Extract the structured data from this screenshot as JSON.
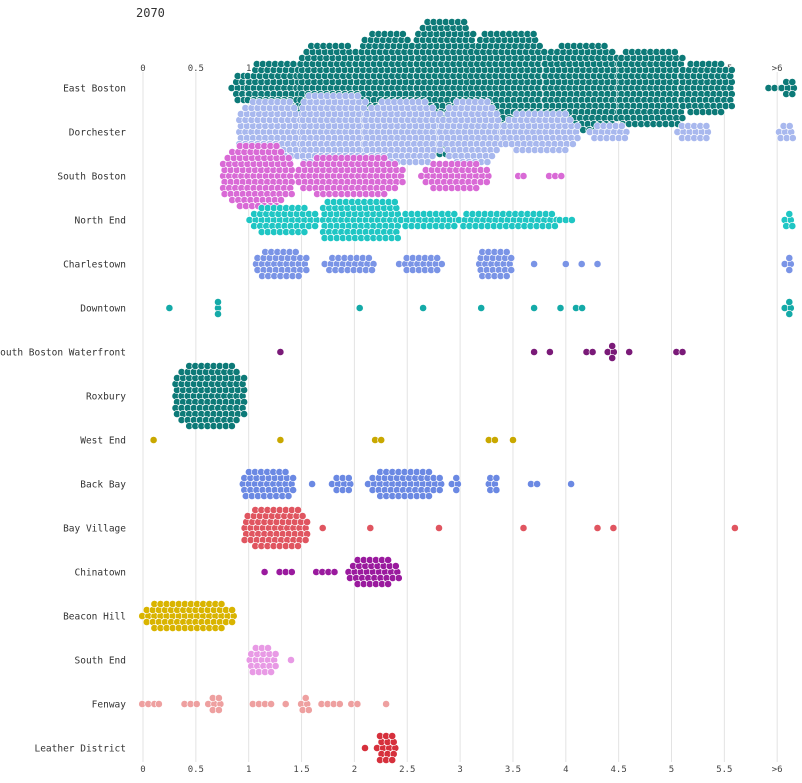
{
  "title": "2070",
  "chart_data": {
    "type": "beeswarm",
    "title": "2070",
    "xlabel": "",
    "ylabel": "",
    "xlim": [
      0,
      6.1
    ],
    "x_ticks": [
      {
        "value": 0,
        "label": "0"
      },
      {
        "value": 0.5,
        "label": "0.5"
      },
      {
        "value": 1,
        "label": "1"
      },
      {
        "value": 1.5,
        "label": "1.5"
      },
      {
        "value": 2,
        "label": "2"
      },
      {
        "value": 2.5,
        "label": "2.5"
      },
      {
        "value": 3,
        "label": "3"
      },
      {
        "value": 3.5,
        "label": "3.5"
      },
      {
        "value": 4,
        "label": "4"
      },
      {
        "value": 4.5,
        "label": "4.5"
      },
      {
        "value": 5,
        "label": "5"
      },
      {
        "value": 5.5,
        "label": "5.5"
      },
      {
        "value": 6,
        "label": ">6"
      }
    ],
    "grid": true,
    "series": [
      {
        "name": "East Boston",
        "color": "#0d7a78",
        "clusters": [
          [
            0.85,
            1.0,
            14
          ],
          [
            1.0,
            1.5,
            80
          ],
          [
            1.5,
            2.0,
            140
          ],
          [
            2.0,
            2.6,
            190
          ],
          [
            2.6,
            3.1,
            220
          ],
          [
            3.1,
            3.8,
            230
          ],
          [
            3.8,
            4.5,
            180
          ],
          [
            4.5,
            5.1,
            140
          ],
          [
            5.1,
            5.55,
            75
          ],
          [
            5.9,
            6.05,
            3
          ],
          [
            6.05,
            6.15,
            7
          ]
        ]
      },
      {
        "name": "Dorchester",
        "color": "#a8b8ee",
        "clusters": [
          [
            0.9,
            1.5,
            110
          ],
          [
            1.5,
            2.1,
            140
          ],
          [
            2.1,
            2.8,
            130
          ],
          [
            2.8,
            3.4,
            100
          ],
          [
            3.4,
            4.1,
            80
          ],
          [
            4.1,
            4.7,
            18
          ],
          [
            4.8,
            5.6,
            16
          ],
          [
            6.0,
            6.15,
            8
          ]
        ]
      },
      {
        "name": "South Boston",
        "color": "#d96ad6",
        "clusters": [
          [
            0.75,
            1.4,
            115
          ],
          [
            1.4,
            2.5,
            110
          ],
          [
            2.6,
            3.3,
            50
          ],
          [
            3.55,
            3.55,
            1
          ],
          [
            3.6,
            3.6,
            1
          ],
          [
            3.85,
            3.95,
            3
          ]
        ]
      },
      {
        "name": "North End",
        "color": "#1fc6c4",
        "clusters": [
          [
            0.95,
            1.7,
            50
          ],
          [
            1.7,
            2.4,
            90
          ],
          [
            2.4,
            3.0,
            28
          ],
          [
            3.0,
            3.9,
            48
          ],
          [
            3.95,
            4.05,
            3
          ],
          [
            6.05,
            6.15,
            5
          ]
        ]
      },
      {
        "name": "Charlestown",
        "color": "#7a94e6",
        "clusters": [
          [
            1.0,
            1.6,
            40
          ],
          [
            1.6,
            2.3,
            24
          ],
          [
            2.3,
            2.95,
            20
          ],
          [
            3.1,
            3.55,
            28
          ],
          [
            3.7,
            3.7,
            1
          ],
          [
            4.0,
            4.0,
            1
          ],
          [
            4.15,
            4.15,
            1
          ],
          [
            4.3,
            4.3,
            1
          ],
          [
            6.05,
            6.15,
            4
          ]
        ]
      },
      {
        "name": "Downtown",
        "color": "#14aaa8",
        "clusters": [
          [
            0.25,
            0.25,
            1
          ],
          [
            0.7,
            0.72,
            3
          ],
          [
            2.05,
            2.05,
            1
          ],
          [
            2.65,
            2.65,
            1
          ],
          [
            3.2,
            3.2,
            1
          ],
          [
            3.7,
            3.7,
            1
          ],
          [
            3.95,
            3.95,
            1
          ],
          [
            4.1,
            4.15,
            2
          ],
          [
            6.05,
            6.15,
            4
          ]
        ]
      },
      {
        "name": "South Boston Waterfront",
        "color": "#7a1a78",
        "clusters": [
          [
            1.3,
            1.3,
            1
          ],
          [
            3.7,
            3.7,
            1
          ],
          [
            3.85,
            3.85,
            1
          ],
          [
            4.2,
            4.25,
            2
          ],
          [
            4.4,
            4.45,
            4
          ],
          [
            4.6,
            4.6,
            1
          ],
          [
            5.05,
            5.1,
            2
          ]
        ]
      },
      {
        "name": "Roxbury",
        "color": "#0d7a78",
        "clusters": [
          [
            0.3,
            0.95,
            120
          ]
        ]
      },
      {
        "name": "West End",
        "color": "#c9a800",
        "clusters": [
          [
            0.1,
            0.1,
            1
          ],
          [
            1.3,
            1.3,
            1
          ],
          [
            2.2,
            2.25,
            2
          ],
          [
            3.25,
            3.35,
            2
          ],
          [
            3.5,
            3.5,
            1
          ]
        ]
      },
      {
        "name": "Back Bay",
        "color": "#6b89e3",
        "clusters": [
          [
            0.95,
            1.4,
            42
          ],
          [
            1.6,
            1.6,
            1
          ],
          [
            1.7,
            2.05,
            10
          ],
          [
            2.05,
            2.9,
            55
          ],
          [
            2.9,
            3.0,
            4
          ],
          [
            3.2,
            3.4,
            6
          ],
          [
            3.65,
            3.75,
            2
          ],
          [
            4.05,
            4.05,
            1
          ]
        ]
      },
      {
        "name": "Bay Village",
        "color": "#e05560",
        "clusters": [
          [
            0.95,
            1.55,
            70
          ],
          [
            1.7,
            1.7,
            1
          ],
          [
            2.15,
            2.15,
            1
          ],
          [
            2.8,
            2.8,
            1
          ],
          [
            3.6,
            3.6,
            1
          ],
          [
            4.3,
            4.3,
            1
          ],
          [
            4.45,
            4.45,
            1
          ],
          [
            5.6,
            5.6,
            1
          ]
        ]
      },
      {
        "name": "Chinatown",
        "color": "#9a1a9e",
        "clusters": [
          [
            1.15,
            1.15,
            1
          ],
          [
            1.3,
            1.4,
            3
          ],
          [
            1.6,
            1.85,
            4
          ],
          [
            1.95,
            2.4,
            38
          ]
        ]
      },
      {
        "name": "Beacon Hill",
        "color": "#d9b400",
        "clusters": [
          [
            0.0,
            0.85,
            70
          ]
        ]
      },
      {
        "name": "South End",
        "color": "#e89ae5",
        "clusters": [
          [
            0.95,
            1.3,
            22
          ],
          [
            1.4,
            1.4,
            1
          ]
        ]
      },
      {
        "name": "Fenway",
        "color": "#eea0a0",
        "clusters": [
          [
            0.0,
            0.1,
            3
          ],
          [
            0.15,
            0.15,
            1
          ],
          [
            0.4,
            0.5,
            3
          ],
          [
            0.6,
            0.75,
            7
          ],
          [
            1.05,
            1.2,
            4
          ],
          [
            1.35,
            1.35,
            1
          ],
          [
            1.45,
            1.6,
            5
          ],
          [
            1.7,
            1.85,
            4
          ],
          [
            1.95,
            2.05,
            2
          ],
          [
            2.3,
            2.3,
            1
          ]
        ]
      },
      {
        "name": "Leather District",
        "color": "#d6303c",
        "clusters": [
          [
            2.1,
            2.1,
            1
          ],
          [
            2.2,
            2.4,
            16
          ]
        ]
      }
    ]
  }
}
